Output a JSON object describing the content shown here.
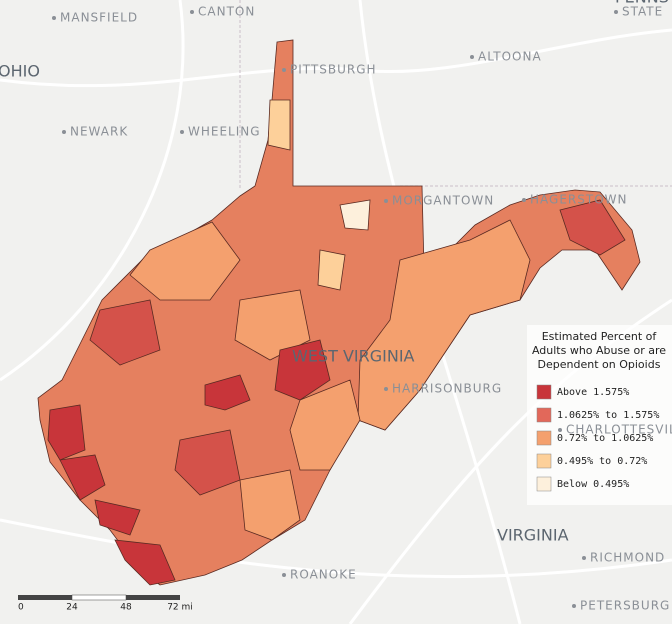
{
  "places": [
    {
      "label": "MANSFIELD",
      "kind": "city"
    },
    {
      "label": "CANTON",
      "kind": "city"
    },
    {
      "label": "STATE",
      "kind": "city"
    },
    {
      "label": "PENNSYLVANIA",
      "kind": "state"
    },
    {
      "label": "PITTSBURGH",
      "kind": "city"
    },
    {
      "label": "ALTOONA",
      "kind": "city"
    },
    {
      "label": "OHIO",
      "kind": "state"
    },
    {
      "label": "NEWARK",
      "kind": "city"
    },
    {
      "label": "WHEELING",
      "kind": "city"
    },
    {
      "label": "MORGANTOWN",
      "kind": "city"
    },
    {
      "label": "HAGERSTOWN",
      "kind": "city"
    },
    {
      "label": "WEST VIRGINIA",
      "kind": "state"
    },
    {
      "label": "HARRISONBURG",
      "kind": "city"
    },
    {
      "label": "CHARLOTTESVILLE",
      "kind": "city"
    },
    {
      "label": "VIRGINIA",
      "kind": "state"
    },
    {
      "label": "RICHMOND",
      "kind": "city"
    },
    {
      "label": "ROANOKE",
      "kind": "city"
    },
    {
      "label": "PETERSBURG",
      "kind": "city"
    }
  ],
  "legend": {
    "title": [
      "Estimated Percent of",
      "Adults who Abuse or are",
      "Dependent on Opioids"
    ],
    "items": [
      {
        "label": "Above 1.575%",
        "color": "#c8353a"
      },
      {
        "label": "1.0625% to 1.575%",
        "color": "#e2685a"
      },
      {
        "label": "0.72% to 1.0625%",
        "color": "#f4a06e"
      },
      {
        "label": "0.495% to 0.72%",
        "color": "#fdd09a"
      },
      {
        "label": "Below 0.495%",
        "color": "#fdf0dc"
      }
    ]
  },
  "scale_bar": [
    "0",
    "24",
    "48",
    "72 mi"
  ]
}
